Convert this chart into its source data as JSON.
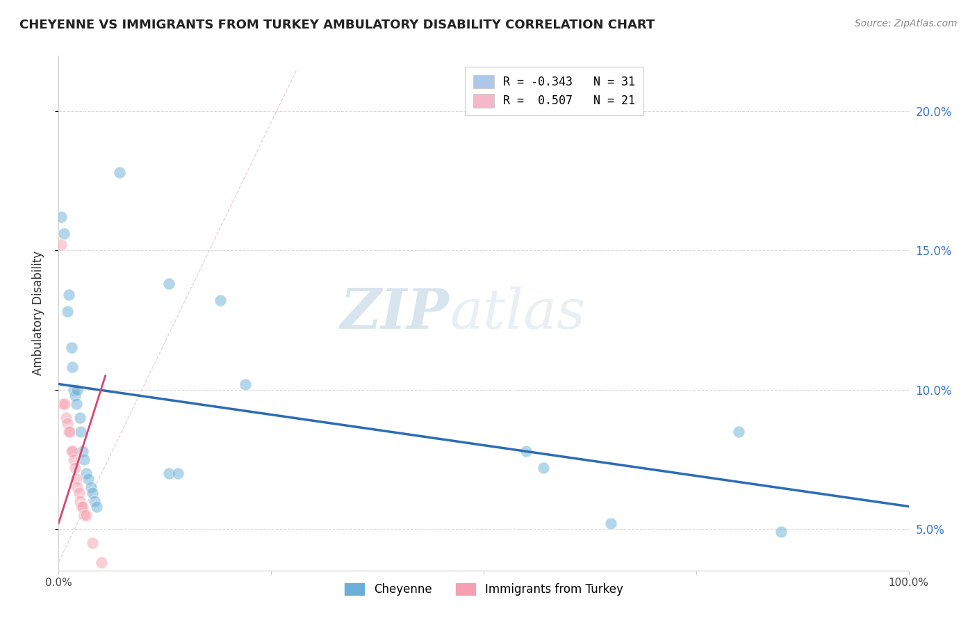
{
  "title": "CHEYENNE VS IMMIGRANTS FROM TURKEY AMBULATORY DISABILITY CORRELATION CHART",
  "source": "Source: ZipAtlas.com",
  "ylabel": "Ambulatory Disability",
  "yticks": [
    5.0,
    10.0,
    15.0,
    20.0
  ],
  "ytick_labels": [
    "5.0%",
    "10.0%",
    "15.0%",
    "20.0%"
  ],
  "xmin": 0.0,
  "xmax": 1.0,
  "ymin": 3.5,
  "ymax": 22.0,
  "legend_entries": [
    {
      "label": "R = -0.343   N = 31",
      "color": "#adc8e8"
    },
    {
      "label": "R =  0.507   N = 21",
      "color": "#f5b8c8"
    }
  ],
  "watermark_zip": "ZIP",
  "watermark_atlas": "atlas",
  "cheyenne_color": "#6baed6",
  "turkey_color": "#f4a0b0",
  "cheyenne_scatter": [
    [
      0.003,
      16.2
    ],
    [
      0.006,
      15.6
    ],
    [
      0.01,
      12.8
    ],
    [
      0.012,
      13.4
    ],
    [
      0.015,
      11.5
    ],
    [
      0.016,
      10.8
    ],
    [
      0.018,
      10.0
    ],
    [
      0.019,
      9.8
    ],
    [
      0.021,
      9.5
    ],
    [
      0.022,
      10.0
    ],
    [
      0.025,
      9.0
    ],
    [
      0.026,
      8.5
    ],
    [
      0.028,
      7.8
    ],
    [
      0.03,
      7.5
    ],
    [
      0.032,
      7.0
    ],
    [
      0.035,
      6.8
    ],
    [
      0.038,
      6.5
    ],
    [
      0.04,
      6.3
    ],
    [
      0.042,
      6.0
    ],
    [
      0.045,
      5.8
    ],
    [
      0.072,
      17.8
    ],
    [
      0.13,
      13.8
    ],
    [
      0.19,
      13.2
    ],
    [
      0.22,
      10.2
    ],
    [
      0.13,
      7.0
    ],
    [
      0.14,
      7.0
    ],
    [
      0.55,
      7.8
    ],
    [
      0.57,
      7.2
    ],
    [
      0.65,
      5.2
    ],
    [
      0.8,
      8.5
    ],
    [
      0.85,
      4.9
    ]
  ],
  "turkey_scatter": [
    [
      0.003,
      15.2
    ],
    [
      0.005,
      9.5
    ],
    [
      0.007,
      9.5
    ],
    [
      0.009,
      9.0
    ],
    [
      0.01,
      8.8
    ],
    [
      0.012,
      8.5
    ],
    [
      0.013,
      8.5
    ],
    [
      0.015,
      7.8
    ],
    [
      0.016,
      7.8
    ],
    [
      0.018,
      7.5
    ],
    [
      0.019,
      7.2
    ],
    [
      0.021,
      6.8
    ],
    [
      0.022,
      6.5
    ],
    [
      0.024,
      6.3
    ],
    [
      0.025,
      6.0
    ],
    [
      0.027,
      5.8
    ],
    [
      0.028,
      5.8
    ],
    [
      0.03,
      5.5
    ],
    [
      0.032,
      5.5
    ],
    [
      0.04,
      4.5
    ],
    [
      0.05,
      3.8
    ]
  ],
  "cheyenne_line_x": [
    0.0,
    1.0
  ],
  "cheyenne_line_y": [
    10.2,
    5.8
  ],
  "turkey_line_x": [
    0.0,
    0.055
  ],
  "turkey_line_y": [
    5.2,
    10.5
  ],
  "diag_line_x": [
    0.0,
    0.28
  ],
  "diag_line_y": [
    3.8,
    21.5
  ]
}
